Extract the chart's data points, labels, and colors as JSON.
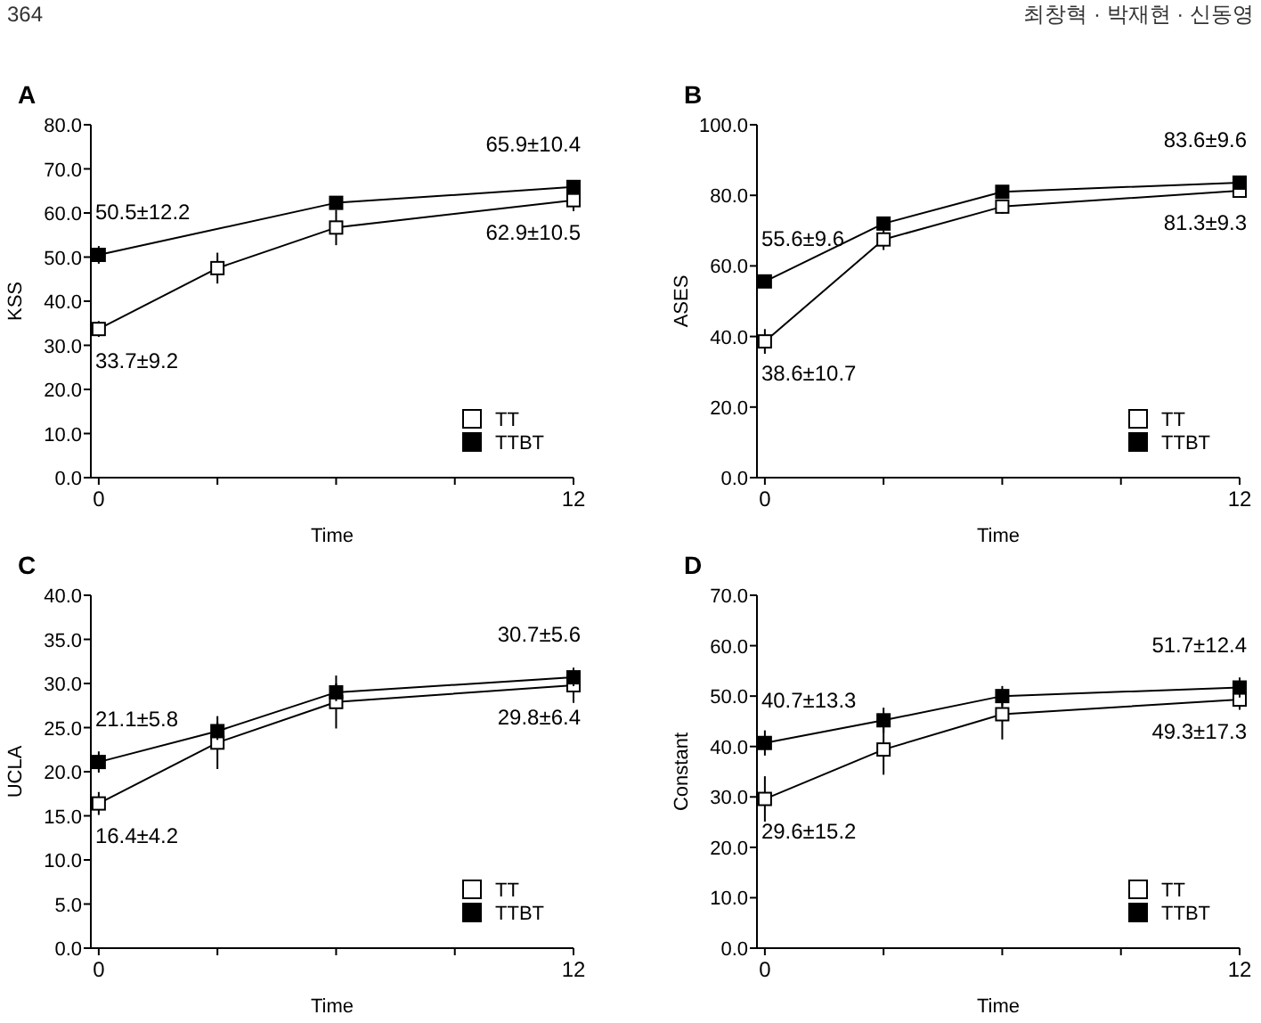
{
  "chart_data": [
    {
      "type": "line",
      "title": "A",
      "xlabel": "Time",
      "ylabel": "KSS",
      "annotations": [
        "364"
      ],
      "xlim": [
        -0.2,
        12
      ],
      "xticks": [
        {
          "value": 0,
          "label": "0"
        },
        {
          "value": 3,
          "label": null
        },
        {
          "value": 6,
          "label": null
        },
        {
          "value": 9,
          "label": null
        },
        {
          "value": 12,
          "label": "12"
        }
      ],
      "ylim": [
        0,
        80
      ],
      "yticks": [
        {
          "value": 0,
          "label": "0.0"
        },
        {
          "value": 10,
          "label": "10.0"
        },
        {
          "value": 20,
          "label": "20.0"
        },
        {
          "value": 30,
          "label": "30.0"
        },
        {
          "value": 40,
          "label": "40.0"
        },
        {
          "value": 50,
          "label": "50.0"
        },
        {
          "value": 60,
          "label": "60.0"
        },
        {
          "value": 70,
          "label": "70.0"
        },
        {
          "value": 80,
          "label": "80.0"
        }
      ],
      "legend": "bottom right",
      "marker": "square",
      "series": [
        {
          "name": "TT",
          "color": "#ffffff",
          "x": [
            0,
            3,
            6,
            12
          ],
          "values": [
            33.7,
            47.5,
            56.7,
            62.9
          ],
          "errors": [
            1.8,
            3.5,
            4,
            2.5
          ],
          "value_labels": [
            "33.7±9.2",
            null,
            null,
            "62.9±10.5"
          ]
        },
        {
          "name": "TTBT",
          "color": "#000000",
          "x": [
            0,
            6,
            12
          ],
          "values": [
            50.5,
            62.3,
            65.9
          ],
          "errors": [
            2,
            null,
            1
          ],
          "value_labels": [
            "50.5±12.2",
            null,
            "65.9±10.4"
          ]
        }
      ]
    },
    {
      "type": "line",
      "title": "B",
      "xlabel": "Time",
      "ylabel": "ASES",
      "annotations": [
        "최창혁 · 박재현 · 신동영"
      ],
      "xlim": [
        -0.2,
        12
      ],
      "xticks": [
        {
          "value": 0,
          "label": "0"
        },
        {
          "value": 3,
          "label": null
        },
        {
          "value": 6,
          "label": null
        },
        {
          "value": 9,
          "label": null
        },
        {
          "value": 12,
          "label": "12"
        }
      ],
      "ylim": [
        0,
        100
      ],
      "yticks": [
        {
          "value": 0,
          "label": "0.0"
        },
        {
          "value": 20,
          "label": "20.0"
        },
        {
          "value": 40,
          "label": "40.0"
        },
        {
          "value": 60,
          "label": "60.0"
        },
        {
          "value": 80,
          "label": "80.0"
        },
        {
          "value": 100,
          "label": "100.0"
        }
      ],
      "legend": "bottom right",
      "marker": "square",
      "series": [
        {
          "name": "TT",
          "color": "#ffffff",
          "x": [
            0,
            3,
            6,
            12
          ],
          "values": [
            38.6,
            67.5,
            76.8,
            81.3
          ],
          "errors": [
            3.5,
            3,
            2,
            2
          ],
          "value_labels": [
            "38.6±10.7",
            null,
            null,
            "81.3±9.3"
          ]
        },
        {
          "name": "TTBT",
          "color": "#000000",
          "x": [
            0,
            3,
            6,
            12
          ],
          "values": [
            55.6,
            72,
            81,
            83.6
          ],
          "errors": [
            1.5,
            null,
            null,
            null
          ],
          "value_labels": [
            "55.6±9.6",
            null,
            null,
            "83.6±9.6"
          ]
        }
      ]
    },
    {
      "type": "line",
      "title": "C",
      "xlabel": "Time",
      "ylabel": "UCLA",
      "xlim": [
        -0.2,
        12
      ],
      "xticks": [
        {
          "value": 0,
          "label": "0"
        },
        {
          "value": 3,
          "label": null
        },
        {
          "value": 6,
          "label": null
        },
        {
          "value": 9,
          "label": null
        },
        {
          "value": 12,
          "label": "12"
        }
      ],
      "ylim": [
        0,
        40
      ],
      "yticks": [
        {
          "value": 0,
          "label": "0.0"
        },
        {
          "value": 5,
          "label": "5.0"
        },
        {
          "value": 10,
          "label": "10.0"
        },
        {
          "value": 15,
          "label": "15.0"
        },
        {
          "value": 20,
          "label": "20.0"
        },
        {
          "value": 25,
          "label": "25.0"
        },
        {
          "value": 30,
          "label": "30.0"
        },
        {
          "value": 35,
          "label": "35.0"
        },
        {
          "value": 40,
          "label": "40.0"
        }
      ],
      "legend": "bottom right",
      "marker": "square",
      "series": [
        {
          "name": "TT",
          "color": "#ffffff",
          "x": [
            0,
            3,
            6,
            12
          ],
          "values": [
            16.4,
            23.3,
            27.9,
            29.8
          ],
          "errors": [
            1.3,
            3,
            3,
            2
          ],
          "value_labels": [
            "16.4±4.2",
            null,
            null,
            "29.8±6.4"
          ]
        },
        {
          "name": "TTBT",
          "color": "#000000",
          "x": [
            0,
            3,
            6,
            12
          ],
          "values": [
            21.1,
            24.6,
            29.0,
            30.7
          ],
          "errors": [
            1.2,
            1,
            1,
            1
          ],
          "value_labels": [
            "21.1±5.8",
            null,
            null,
            "30.7±5.6"
          ]
        }
      ]
    },
    {
      "type": "line",
      "title": "D",
      "xlabel": "Time",
      "ylabel": "Constant",
      "xlim": [
        -0.2,
        12
      ],
      "xticks": [
        {
          "value": 0,
          "label": "0"
        },
        {
          "value": 3,
          "label": null
        },
        {
          "value": 6,
          "label": null
        },
        {
          "value": 9,
          "label": null
        },
        {
          "value": 12,
          "label": "12"
        }
      ],
      "ylim": [
        0,
        70
      ],
      "yticks": [
        {
          "value": 0,
          "label": "0.0"
        },
        {
          "value": 10,
          "label": "10.0"
        },
        {
          "value": 20,
          "label": "20.0"
        },
        {
          "value": 30,
          "label": "30.0"
        },
        {
          "value": 40,
          "label": "40.0"
        },
        {
          "value": 50,
          "label": "50.0"
        },
        {
          "value": 60,
          "label": "60.0"
        },
        {
          "value": 70,
          "label": "70.0"
        }
      ],
      "legend": "bottom right",
      "marker": "square",
      "series": [
        {
          "name": "TT",
          "color": "#ffffff",
          "x": [
            0,
            3,
            6,
            12
          ],
          "values": [
            29.6,
            39.4,
            46.4,
            49.3
          ],
          "errors": [
            4.5,
            5,
            5,
            2
          ],
          "value_labels": [
            "29.6±15.2",
            null,
            null,
            "49.3±17.3"
          ]
        },
        {
          "name": "TTBT",
          "color": "#000000",
          "x": [
            0,
            3,
            6,
            12
          ],
          "values": [
            40.7,
            45.2,
            50.0,
            51.7
          ],
          "errors": [
            2.5,
            2.5,
            2,
            2
          ],
          "value_labels": [
            "40.7±13.3",
            null,
            null,
            "51.7±12.4"
          ]
        }
      ]
    }
  ]
}
